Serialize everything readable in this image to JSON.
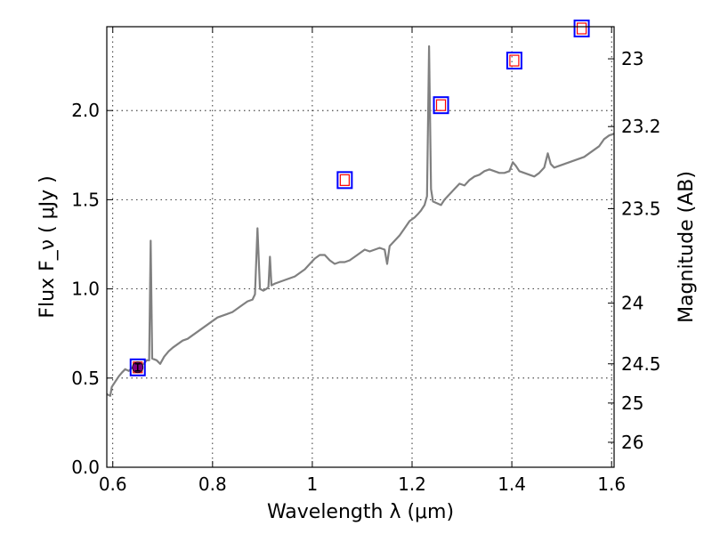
{
  "chart_data": {
    "type": "line",
    "xlabel": "Wavelength λ (μm)",
    "ylabel": "Flux F_ν ( μJy )",
    "y2label": "Magnitude (AB)",
    "xlim": [
      0.588,
      1.605
    ],
    "ylim": [
      0.0,
      2.47
    ],
    "grid": true,
    "x_ticks": [
      0.6,
      0.8,
      1.0,
      1.2,
      1.4,
      1.6
    ],
    "x_tick_labels": [
      "0.6",
      "0.8",
      "1",
      "1.2",
      "1.4",
      "1.6"
    ],
    "y_ticks": [
      0.0,
      0.5,
      1.0,
      1.5,
      2.0
    ],
    "y_tick_labels": [
      "0.0",
      "0.5",
      "1.0",
      "1.5",
      "2.0"
    ],
    "y2_ticks": [
      {
        "label": "23",
        "flux": 2.29
      },
      {
        "label": "23.2",
        "flux": 1.91
      },
      {
        "label": "23.5",
        "flux": 1.45
      },
      {
        "label": "24",
        "flux": 0.92
      },
      {
        "label": "24.5",
        "flux": 0.58
      },
      {
        "label": "25",
        "flux": 0.36
      },
      {
        "label": "26",
        "flux": 0.14
      }
    ],
    "series": [
      {
        "style": "spectrum",
        "color": "#808080",
        "points": [
          [
            0.588,
            0.41
          ],
          [
            0.595,
            0.4
          ],
          [
            0.598,
            0.45
          ],
          [
            0.605,
            0.48
          ],
          [
            0.612,
            0.51
          ],
          [
            0.618,
            0.53
          ],
          [
            0.625,
            0.55
          ],
          [
            0.632,
            0.54
          ],
          [
            0.64,
            0.56
          ],
          [
            0.648,
            0.56
          ],
          [
            0.655,
            0.57
          ],
          [
            0.662,
            0.58
          ],
          [
            0.668,
            0.6
          ],
          [
            0.673,
            0.6
          ],
          [
            0.676,
            1.27
          ],
          [
            0.679,
            0.61
          ],
          [
            0.688,
            0.6
          ],
          [
            0.695,
            0.58
          ],
          [
            0.703,
            0.62
          ],
          [
            0.712,
            0.65
          ],
          [
            0.72,
            0.67
          ],
          [
            0.73,
            0.69
          ],
          [
            0.74,
            0.71
          ],
          [
            0.75,
            0.72
          ],
          [
            0.76,
            0.74
          ],
          [
            0.77,
            0.76
          ],
          [
            0.78,
            0.78
          ],
          [
            0.79,
            0.8
          ],
          [
            0.8,
            0.82
          ],
          [
            0.81,
            0.84
          ],
          [
            0.82,
            0.85
          ],
          [
            0.83,
            0.86
          ],
          [
            0.84,
            0.87
          ],
          [
            0.85,
            0.89
          ],
          [
            0.86,
            0.91
          ],
          [
            0.87,
            0.93
          ],
          [
            0.88,
            0.94
          ],
          [
            0.885,
            0.97
          ],
          [
            0.89,
            1.34
          ],
          [
            0.895,
            1.0
          ],
          [
            0.902,
            0.99
          ],
          [
            0.908,
            1.0
          ],
          [
            0.912,
            1.01
          ],
          [
            0.915,
            1.18
          ],
          [
            0.918,
            1.02
          ],
          [
            0.925,
            1.03
          ],
          [
            0.935,
            1.04
          ],
          [
            0.945,
            1.05
          ],
          [
            0.955,
            1.06
          ],
          [
            0.965,
            1.07
          ],
          [
            0.975,
            1.09
          ],
          [
            0.985,
            1.11
          ],
          [
            0.995,
            1.14
          ],
          [
            1.005,
            1.17
          ],
          [
            1.015,
            1.19
          ],
          [
            1.025,
            1.19
          ],
          [
            1.035,
            1.16
          ],
          [
            1.045,
            1.14
          ],
          [
            1.055,
            1.15
          ],
          [
            1.065,
            1.15
          ],
          [
            1.075,
            1.16
          ],
          [
            1.085,
            1.18
          ],
          [
            1.095,
            1.2
          ],
          [
            1.105,
            1.22
          ],
          [
            1.115,
            1.21
          ],
          [
            1.125,
            1.22
          ],
          [
            1.135,
            1.23
          ],
          [
            1.145,
            1.22
          ],
          [
            1.15,
            1.14
          ],
          [
            1.155,
            1.24
          ],
          [
            1.165,
            1.27
          ],
          [
            1.175,
            1.3
          ],
          [
            1.185,
            1.34
          ],
          [
            1.195,
            1.38
          ],
          [
            1.205,
            1.4
          ],
          [
            1.212,
            1.42
          ],
          [
            1.218,
            1.44
          ],
          [
            1.225,
            1.47
          ],
          [
            1.23,
            1.52
          ],
          [
            1.234,
            2.36
          ],
          [
            1.238,
            1.56
          ],
          [
            1.242,
            1.49
          ],
          [
            1.25,
            1.48
          ],
          [
            1.258,
            1.47
          ],
          [
            1.265,
            1.5
          ],
          [
            1.275,
            1.53
          ],
          [
            1.285,
            1.56
          ],
          [
            1.295,
            1.59
          ],
          [
            1.305,
            1.58
          ],
          [
            1.315,
            1.61
          ],
          [
            1.325,
            1.63
          ],
          [
            1.335,
            1.64
          ],
          [
            1.345,
            1.66
          ],
          [
            1.355,
            1.67
          ],
          [
            1.365,
            1.66
          ],
          [
            1.375,
            1.65
          ],
          [
            1.385,
            1.65
          ],
          [
            1.395,
            1.66
          ],
          [
            1.402,
            1.71
          ],
          [
            1.408,
            1.69
          ],
          [
            1.415,
            1.66
          ],
          [
            1.425,
            1.65
          ],
          [
            1.435,
            1.64
          ],
          [
            1.445,
            1.63
          ],
          [
            1.455,
            1.65
          ],
          [
            1.465,
            1.68
          ],
          [
            1.472,
            1.76
          ],
          [
            1.478,
            1.7
          ],
          [
            1.485,
            1.68
          ],
          [
            1.495,
            1.69
          ],
          [
            1.505,
            1.7
          ],
          [
            1.515,
            1.71
          ],
          [
            1.525,
            1.72
          ],
          [
            1.535,
            1.73
          ],
          [
            1.545,
            1.74
          ],
          [
            1.555,
            1.76
          ],
          [
            1.565,
            1.78
          ],
          [
            1.575,
            1.8
          ],
          [
            1.585,
            1.84
          ],
          [
            1.595,
            1.86
          ],
          [
            1.605,
            1.87
          ]
        ]
      },
      {
        "style": "model-photometry",
        "outer_color": "#0000ff",
        "inner_color": "#ff0000",
        "points": [
          [
            0.65,
            0.56
          ],
          [
            1.065,
            1.61
          ],
          [
            1.258,
            2.03
          ],
          [
            1.405,
            2.28
          ],
          [
            1.54,
            2.46
          ]
        ]
      },
      {
        "style": "observed-photometry",
        "color": "#800080",
        "error_color": "#000000",
        "points": [
          {
            "x": 0.65,
            "y": 0.56,
            "err": 0.02
          }
        ]
      }
    ]
  }
}
